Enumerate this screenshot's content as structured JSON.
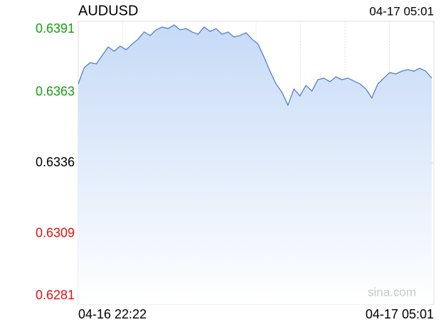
{
  "chart_data": {
    "type": "area-line",
    "title": "AUDUSD",
    "timestamp": "04-17 05:01",
    "watermark": "sina.com",
    "categories": [
      "04-16 22:22",
      null,
      null,
      null,
      null,
      null,
      null,
      null,
      null,
      null,
      null,
      null,
      null,
      null,
      null,
      null,
      null,
      null,
      null,
      null,
      null,
      null,
      null,
      null,
      null,
      null,
      null,
      null,
      null,
      null,
      null,
      null,
      null,
      null,
      null,
      null,
      null,
      null,
      null,
      null,
      null,
      null,
      null,
      null,
      null,
      null,
      null,
      null,
      null,
      null,
      null,
      null,
      null,
      null,
      null,
      null,
      null,
      null,
      null,
      "04-17 05:01"
    ],
    "series": [
      {
        "name": "AUDUSD",
        "color": "#4a78c2",
        "values": [
          0.63666,
          0.63729,
          0.63748,
          0.63743,
          0.63776,
          0.63809,
          0.63792,
          0.63812,
          0.63798,
          0.6382,
          0.63839,
          0.63867,
          0.63853,
          0.63875,
          0.63886,
          0.6388,
          0.63894,
          0.63875,
          0.6388,
          0.63867,
          0.63858,
          0.63886,
          0.63869,
          0.6388,
          0.63858,
          0.63867,
          0.63847,
          0.63853,
          0.63864,
          0.63839,
          0.6382,
          0.6377,
          0.63715,
          0.63666,
          0.63633,
          0.63583,
          0.63646,
          0.63619,
          0.6366,
          0.63638,
          0.63682,
          0.63688,
          0.63674,
          0.63693,
          0.63682,
          0.63688,
          0.63677,
          0.63666,
          0.63646,
          0.63611,
          0.63666,
          0.63688,
          0.6371,
          0.63704,
          0.63715,
          0.63721,
          0.63715,
          0.63726,
          0.63715,
          0.63688
        ]
      }
    ],
    "fill_color": "#c6daf7",
    "ylim": [
      0.62812,
      0.63908
    ],
    "yticks": [
      {
        "value": 0.63908,
        "label": "0.6391"
      },
      {
        "value": 0.63634,
        "label": "0.6363"
      },
      {
        "value": 0.6336,
        "label": "0.6336"
      },
      {
        "value": 0.63086,
        "label": "0.6309"
      },
      {
        "value": 0.62812,
        "label": "0.6281"
      }
    ],
    "up_color": "#13a10e",
    "flat_color": "#000000",
    "down_color": "#e01010",
    "grid": true
  }
}
